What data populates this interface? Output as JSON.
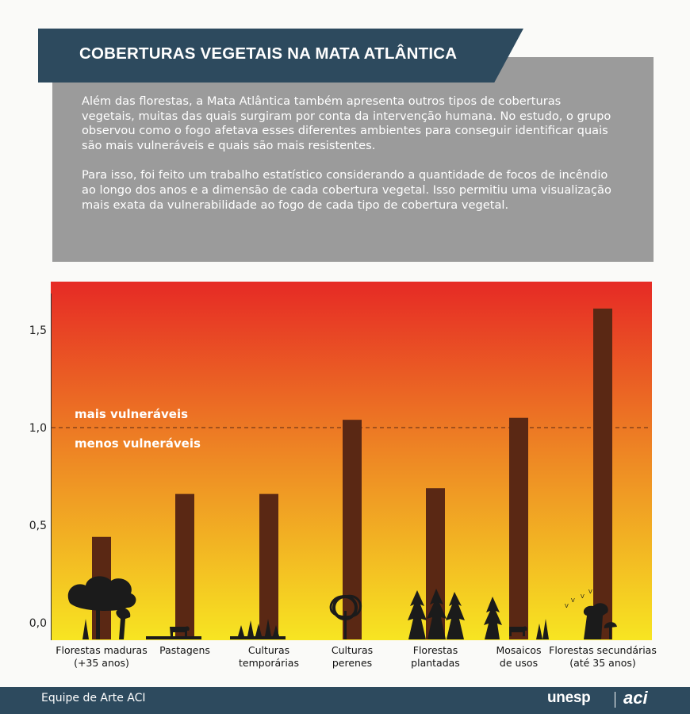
{
  "title": "COBERTURAS VEGETAIS NA MATA ATLÂNTICA",
  "intro": {
    "p1": "Além das florestas, a Mata Atlântica também apresenta outros tipos de coberturas vegetais, muitas das quais surgiram por conta da intervenção humana. No estudo, o grupo observou como o fogo afetava esses diferentes ambientes para conseguir identificar quais são mais vulneráveis e quais são mais resistentes.",
    "p2": "Para isso, foi feito um trabalho estatístico considerando a quantidade de focos de incêndio ao longo dos anos e a dimensão de cada cobertura vegetal. Isso permitiu uma visualização mais exata da vulnerabilidade ao fogo de cada tipo de cobertura vegetal."
  },
  "chart_data": {
    "type": "bar",
    "categories": [
      [
        "Florestas maduras",
        "(+35 anos)"
      ],
      [
        "Pastagens"
      ],
      [
        "Culturas",
        "temporárias"
      ],
      [
        "Culturas",
        "perenes"
      ],
      [
        "Florestas",
        "plantadas"
      ],
      [
        "Mosaicos",
        "de usos"
      ],
      [
        "Florestas secundárias",
        "(até 35 anos)"
      ]
    ],
    "values": [
      0.44,
      0.66,
      0.66,
      1.04,
      0.69,
      1.05,
      1.61
    ],
    "ylim": [
      0,
      1.7
    ],
    "yticks": [
      0.0,
      0.5,
      1.0,
      1.5
    ],
    "ytick_labels": [
      "0,0",
      "0,5",
      "1,0",
      "1,5"
    ],
    "threshold": 1.0,
    "label_above": "mais vulneráveis",
    "label_below": "menos vulneráveis",
    "bar_color": "#5a2814",
    "gradient_colors": [
      "#e62a25",
      "#f7e522"
    ]
  },
  "footer": {
    "credit": "Equipe de Arte ACI",
    "logo_unesp": "unesp",
    "logo_aci": "aci"
  },
  "icons": [
    "tree-icon",
    "cow-icon",
    "crop-icon",
    "pine-tree-icon",
    "bird-icon"
  ]
}
